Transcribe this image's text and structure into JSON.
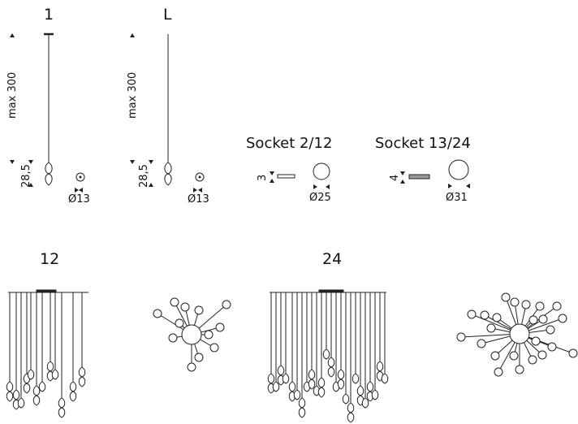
{
  "labels": {
    "model_1": "1",
    "model_l": "L",
    "max_1": "max 300",
    "max_l": "max 300",
    "h_1": "28,5",
    "h_l": "28,5",
    "dia_1": "Ø13",
    "dia_l": "Ø13",
    "socket_small": "Socket 2/12",
    "socket_large": "Socket 13/24",
    "s_small_h": "3",
    "s_small_d": "Ø25",
    "s_large_h": "4",
    "s_large_d": "Ø31",
    "group_12": "12",
    "group_24": "24"
  },
  "colors": {
    "line": "#222222",
    "fill": "#ffffff"
  }
}
